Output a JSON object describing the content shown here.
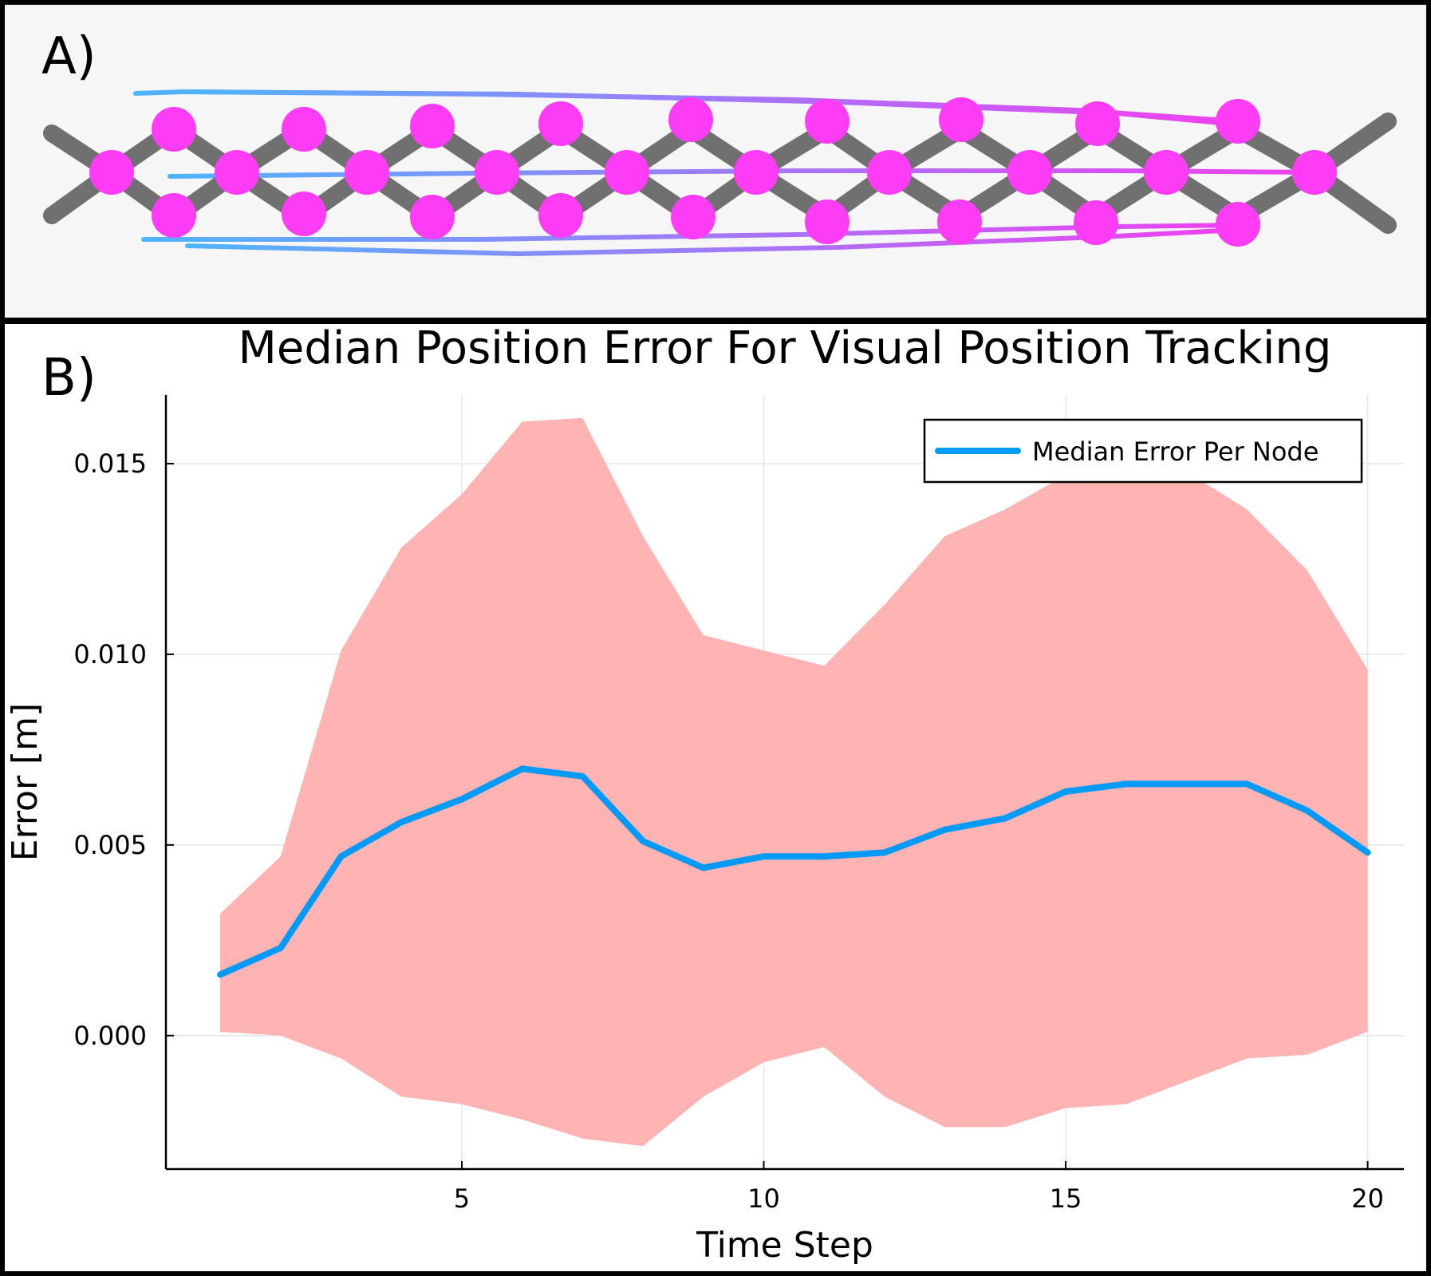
{
  "panel_a": {
    "label": "A)",
    "colors": {
      "truss_bar": "#707070",
      "node": "#ff3cf5",
      "trail_start": "#4fb4ff",
      "trail_end": "#f040f0",
      "background": "#f6f6f6"
    }
  },
  "panel_b": {
    "label": "B)"
  },
  "chart_data": {
    "type": "line",
    "title": "Median Position Error For Visual Position Tracking",
    "xlabel": "Time Step",
    "ylabel": "Error [m]",
    "xlim": [
      0.1,
      20.6
    ],
    "ylim": [
      -0.0035,
      0.0168
    ],
    "xticks": [
      5,
      10,
      15,
      20
    ],
    "xtick_labels": [
      "5",
      "10",
      "15",
      "20"
    ],
    "yticks": [
      0.0,
      0.005,
      0.01,
      0.015
    ],
    "ytick_labels": [
      "0.000",
      "0.005",
      "0.010",
      "0.015"
    ],
    "grid": true,
    "legend_position": "top-right",
    "x": [
      1,
      2,
      3,
      4,
      5,
      6,
      7,
      8,
      9,
      10,
      11,
      12,
      13,
      14,
      15,
      16,
      17,
      18,
      19,
      20
    ],
    "series": [
      {
        "name": "Median Error Per Node",
        "color": "#009af9",
        "values": [
          0.0016,
          0.0023,
          0.0047,
          0.0056,
          0.0062,
          0.007,
          0.0068,
          0.0051,
          0.0044,
          0.0047,
          0.0047,
          0.0048,
          0.0054,
          0.0057,
          0.0064,
          0.0066,
          0.0066,
          0.0066,
          0.0059,
          0.0048
        ]
      }
    ],
    "band": {
      "color": "#ffb3b3",
      "lower": [
        0.0001,
        0.0,
        -0.0006,
        -0.0016,
        -0.0018,
        -0.0022,
        -0.0027,
        -0.0029,
        -0.0016,
        -0.0007,
        -0.0003,
        -0.0016,
        -0.0024,
        -0.0024,
        -0.0019,
        -0.0018,
        -0.0012,
        -0.0006,
        -0.0005,
        0.0001
      ],
      "upper": [
        0.0032,
        0.0047,
        0.0101,
        0.0128,
        0.0142,
        0.0161,
        0.0162,
        0.0131,
        0.0105,
        0.0101,
        0.0097,
        0.0113,
        0.0131,
        0.0138,
        0.0147,
        0.0149,
        0.0148,
        0.0138,
        0.0122,
        0.0096
      ]
    }
  }
}
